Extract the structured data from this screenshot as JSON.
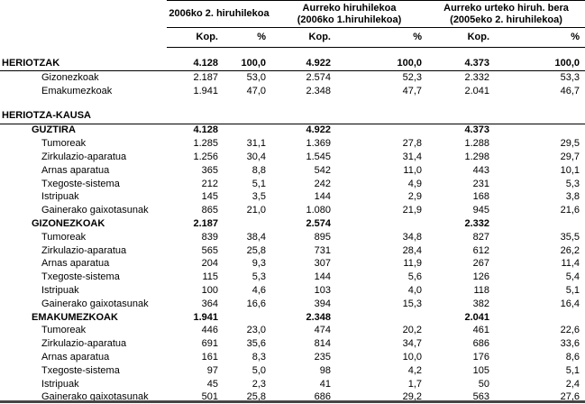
{
  "colors": {
    "text": "#000000",
    "background": "#ffffff",
    "rule": "#000000",
    "bottom_rule": "#454545"
  },
  "chart_data": {
    "type": "table",
    "column_groups": [
      {
        "line1": "2006ko 2. hiruhilekoa",
        "line2": ""
      },
      {
        "line1": "Aurreko hiruhilekoa",
        "line2": "(2006ko 1.hiruhilekoa)"
      },
      {
        "line1": "Aurreko urteko hiruh. bera",
        "line2": "(2005eko 2. hiruhilekoa)"
      }
    ],
    "subheaders": {
      "kop": "Kop.",
      "pct": "%"
    },
    "rows": [
      {
        "label": "HERIOTZAK",
        "style": "root",
        "values": [
          "4.128",
          "100,0",
          "4.922",
          "100,0",
          "4.373",
          "100,0"
        ]
      },
      {
        "label": "Gizonezkoak",
        "style": "leaf",
        "values": [
          "2.187",
          "53,0",
          "2.574",
          "52,3",
          "2.332",
          "53,3"
        ]
      },
      {
        "label": "Emakumezkoak",
        "style": "leaf",
        "values": [
          "1.941",
          "47,0",
          "2.348",
          "47,7",
          "2.041",
          "46,7"
        ]
      },
      {
        "label": "",
        "style": "gap",
        "values": []
      },
      {
        "label": "HERIOTZA-KAUSA",
        "style": "root",
        "values": [
          "",
          "",
          "",
          "",
          "",
          ""
        ]
      },
      {
        "label": "GUZTIRA",
        "style": "group",
        "values": [
          "4.128",
          "",
          "4.922",
          "",
          "4.373",
          ""
        ]
      },
      {
        "label": "Tumoreak",
        "style": "leaf",
        "values": [
          "1.285",
          "31,1",
          "1.369",
          "27,8",
          "1.288",
          "29,5"
        ]
      },
      {
        "label": "Zirkulazio-aparatua",
        "style": "leaf",
        "values": [
          "1.256",
          "30,4",
          "1.545",
          "31,4",
          "1.298",
          "29,7"
        ]
      },
      {
        "label": "Arnas aparatua",
        "style": "leaf",
        "values": [
          "365",
          "8,8",
          "542",
          "11,0",
          "443",
          "10,1"
        ]
      },
      {
        "label": "Txegoste-sistema",
        "style": "leaf",
        "values": [
          "212",
          "5,1",
          "242",
          "4,9",
          "231",
          "5,3"
        ]
      },
      {
        "label": "Istripuak",
        "style": "leaf",
        "values": [
          "145",
          "3,5",
          "144",
          "2,9",
          "168",
          "3,8"
        ]
      },
      {
        "label": "Gainerako gaixotasunak",
        "style": "leaf",
        "values": [
          "865",
          "21,0",
          "1.080",
          "21,9",
          "945",
          "21,6"
        ]
      },
      {
        "label": "GIZONEZKOAK",
        "style": "group",
        "values": [
          "2.187",
          "",
          "2.574",
          "",
          "2.332",
          ""
        ]
      },
      {
        "label": "Tumoreak",
        "style": "leaf",
        "values": [
          "839",
          "38,4",
          "895",
          "34,8",
          "827",
          "35,5"
        ]
      },
      {
        "label": "Zirkulazio-aparatua",
        "style": "leaf",
        "values": [
          "565",
          "25,8",
          "731",
          "28,4",
          "612",
          "26,2"
        ]
      },
      {
        "label": "Arnas aparatua",
        "style": "leaf",
        "values": [
          "204",
          "9,3",
          "307",
          "11,9",
          "267",
          "11,4"
        ]
      },
      {
        "label": "Txegoste-sistema",
        "style": "leaf",
        "values": [
          "115",
          "5,3",
          "144",
          "5,6",
          "126",
          "5,4"
        ]
      },
      {
        "label": "Istripuak",
        "style": "leaf",
        "values": [
          "100",
          "4,6",
          "103",
          "4,0",
          "118",
          "5,1"
        ]
      },
      {
        "label": "Gainerako gaixotasunak",
        "style": "leaf",
        "values": [
          "364",
          "16,6",
          "394",
          "15,3",
          "382",
          "16,4"
        ]
      },
      {
        "label": "EMAKUMEZKOAK",
        "style": "group",
        "values": [
          "1.941",
          "",
          "2.348",
          "",
          "2.041",
          ""
        ]
      },
      {
        "label": "Tumoreak",
        "style": "leaf",
        "values": [
          "446",
          "23,0",
          "474",
          "20,2",
          "461",
          "22,6"
        ]
      },
      {
        "label": "Zirkulazio-aparatua",
        "style": "leaf",
        "values": [
          "691",
          "35,6",
          "814",
          "34,7",
          "686",
          "33,6"
        ]
      },
      {
        "label": "Arnas aparatua",
        "style": "leaf",
        "values": [
          "161",
          "8,3",
          "235",
          "10,0",
          "176",
          "8,6"
        ]
      },
      {
        "label": "Txegoste-sistema",
        "style": "leaf",
        "values": [
          "97",
          "5,0",
          "98",
          "4,2",
          "105",
          "5,1"
        ]
      },
      {
        "label": "Istripuak",
        "style": "leaf",
        "values": [
          "45",
          "2,3",
          "41",
          "1,7",
          "50",
          "2,4"
        ]
      },
      {
        "label": "Gainerako gaixotasunak",
        "style": "leaf",
        "values": [
          "501",
          "25,8",
          "686",
          "29,2",
          "563",
          "27,6"
        ]
      }
    ]
  }
}
